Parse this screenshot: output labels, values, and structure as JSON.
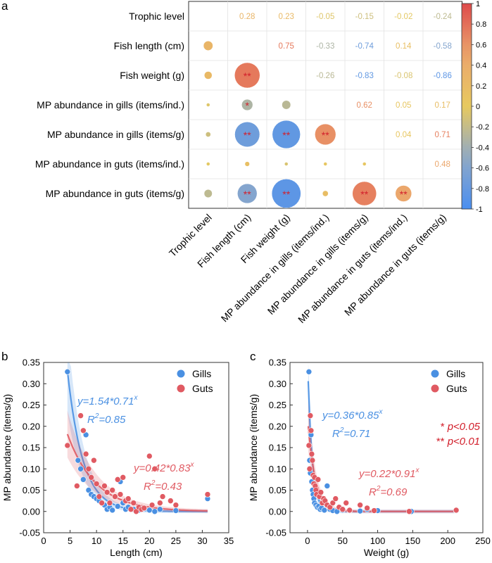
{
  "chart_data": [
    {
      "panel": "a",
      "type": "heatmap",
      "variables": [
        "Trophic level",
        "Fish length (cm)",
        "Fish weight (g)",
        "MP abundance in gills (items/ind.)",
        "MP abundance in gills (items/g)",
        "MP abundance in guts (items/ind.)",
        "MP abundance in guts (items/g)"
      ],
      "values": [
        [
          null,
          0.28,
          0.23,
          -0.05,
          -0.15,
          -0.02,
          -0.24
        ],
        [
          0.28,
          null,
          0.75,
          -0.33,
          -0.74,
          0.14,
          -0.58
        ],
        [
          0.23,
          0.75,
          null,
          -0.26,
          -0.83,
          -0.08,
          -0.86
        ],
        [
          -0.05,
          -0.33,
          -0.26,
          null,
          0.62,
          0.05,
          0.17
        ],
        [
          -0.15,
          -0.74,
          -0.83,
          0.62,
          null,
          0.04,
          0.71
        ],
        [
          -0.02,
          0.14,
          -0.08,
          0.05,
          0.04,
          null,
          0.48
        ],
        [
          -0.24,
          -0.58,
          -0.86,
          0.17,
          0.71,
          0.48,
          null
        ]
      ],
      "labels": [
        [
          "",
          "0.28",
          "0.23",
          "-0.05",
          "-0.15",
          "-0.02",
          "-0.24"
        ],
        [
          "",
          "",
          "0.75",
          "-0.33",
          "-0.74",
          "0.14",
          "-0.58"
        ],
        [
          "",
          "",
          "",
          "-0.26",
          "-0.83",
          "-0.08",
          "-0.86"
        ],
        [
          "",
          "",
          "",
          "",
          "0.62",
          "0.05",
          "0.17"
        ],
        [
          "",
          "",
          "",
          "",
          "",
          "0.04",
          "0.71"
        ],
        [
          "",
          "",
          "",
          "",
          "",
          "",
          "0.48"
        ],
        [
          "",
          "",
          "",
          "",
          "",
          "",
          ""
        ]
      ],
      "significance": [
        [
          "",
          "",
          "",
          "",
          "",
          "",
          ""
        ],
        [
          "",
          "",
          "",
          "",
          "",
          "",
          ""
        ],
        [
          "",
          "**",
          "",
          "",
          "",
          "",
          ""
        ],
        [
          "",
          "*",
          "",
          "",
          "",
          "",
          ""
        ],
        [
          "",
          "**",
          "**",
          "**",
          "",
          "",
          ""
        ],
        [
          "",
          "",
          "",
          "",
          "",
          "",
          ""
        ],
        [
          "",
          "**",
          "**",
          "",
          "**",
          "**",
          ""
        ]
      ],
      "colorbar": {
        "min": -1,
        "max": 1,
        "ticks": [
          "1",
          "0.8",
          "0.6",
          "0.4",
          "0.2",
          "0",
          "-0.2",
          "-0.4",
          "-0.6",
          "-0.8",
          "-1"
        ]
      },
      "significance_legend": [
        {
          "mark": "*",
          "text": "p<0.05"
        },
        {
          "mark": "**",
          "text": "p<0.01"
        }
      ]
    },
    {
      "panel": "b",
      "type": "scatter",
      "xlabel": "Length (cm)",
      "ylabel": "MP abundance (items/g)",
      "xlim": [
        0,
        35
      ],
      "ylim": [
        -0.05,
        0.35
      ],
      "xticks": [
        "0",
        "5",
        "10",
        "15",
        "20",
        "25",
        "30",
        "35"
      ],
      "yticks": [
        "-0.05",
        "0.00",
        "0.05",
        "0.10",
        "0.15",
        "0.20",
        "0.25",
        "0.30",
        "0.35"
      ],
      "legend_position": "top-right",
      "series": [
        {
          "name": "Gills",
          "color": "#4a90e2",
          "fit": {
            "a": 1.54,
            "b": 0.71,
            "x_range": [
              4.5,
              31
            ],
            "equation": "y=1.54*0.71",
            "exponent": "x",
            "r2_label": "R",
            "r2_sup": "2",
            "r2_value": "=0.85"
          },
          "points": [
            [
              4.5,
              0.328
            ],
            [
              6.5,
              0.12
            ],
            [
              7,
              0.1
            ],
            [
              7.5,
              0.075
            ],
            [
              8,
              0.18
            ],
            [
              8.5,
              0.05
            ],
            [
              9,
              0.04
            ],
            [
              9.5,
              0.035
            ],
            [
              10,
              0.03
            ],
            [
              10.5,
              0.025
            ],
            [
              11,
              0.02
            ],
            [
              11.5,
              0.015
            ],
            [
              12,
              0.005
            ],
            [
              12.5,
              0.01
            ],
            [
              13,
              0.003
            ],
            [
              14,
              0.012
            ],
            [
              14.5,
              0.07
            ],
            [
              15,
              0.02
            ],
            [
              15.5,
              0.005
            ],
            [
              16,
              0.01
            ],
            [
              17,
              0.005
            ],
            [
              18,
              0.003
            ],
            [
              19,
              0.008
            ],
            [
              20,
              0.003
            ],
            [
              21,
              0.0
            ],
            [
              22,
              0.005
            ],
            [
              25,
              0.002
            ],
            [
              31,
              0.03
            ]
          ]
        },
        {
          "name": "Guts",
          "color": "#e05a62",
          "fit": {
            "a": 0.42,
            "b": 0.83,
            "x_range": [
              4.5,
              31
            ],
            "equation": "y=0.42*0.83",
            "exponent": "x",
            "r2_label": "R",
            "r2_sup": "2",
            "r2_value": "=0.43"
          },
          "points": [
            [
              4.5,
              0.155
            ],
            [
              6.3,
              0.06
            ],
            [
              7,
              0.225
            ],
            [
              7.5,
              0.19
            ],
            [
              8,
              0.135
            ],
            [
              8.5,
              0.1
            ],
            [
              9,
              0.08
            ],
            [
              9.5,
              0.12
            ],
            [
              10,
              0.065
            ],
            [
              10.5,
              0.035
            ],
            [
              11,
              0.02
            ],
            [
              11.5,
              0.06
            ],
            [
              12,
              0.045
            ],
            [
              12.5,
              0.02
            ],
            [
              13,
              0.05
            ],
            [
              13.5,
              0.035
            ],
            [
              14,
              0.075
            ],
            [
              14.5,
              0.04
            ],
            [
              15,
              0.08
            ],
            [
              15.5,
              0.025
            ],
            [
              16,
              0.03
            ],
            [
              16.5,
              0.005
            ],
            [
              17,
              0.02
            ],
            [
              17.5,
              0.0
            ],
            [
              18,
              0.01
            ],
            [
              18.5,
              0.005
            ],
            [
              19,
              0.008
            ],
            [
              20,
              0.13
            ],
            [
              20.5,
              0.015
            ],
            [
              21,
              0.1
            ],
            [
              22,
              0.02
            ],
            [
              22.5,
              0.035
            ],
            [
              24,
              0.025
            ],
            [
              25,
              0.015
            ],
            [
              31,
              0.04
            ]
          ]
        }
      ]
    },
    {
      "panel": "c",
      "type": "scatter",
      "xlabel": "Weight (g)",
      "ylabel": "MP abundance (items/g)",
      "xlim": [
        -25,
        250
      ],
      "ylim": [
        -0.05,
        0.35
      ],
      "xticks": [
        "0",
        "50",
        "100",
        "150",
        "200",
        "250"
      ],
      "yticks": [
        "-0.05",
        "0.00",
        "0.05",
        "0.10",
        "0.15",
        "0.20",
        "0.25",
        "0.30",
        "0.35"
      ],
      "legend_position": "top-right",
      "series": [
        {
          "name": "Gills",
          "color": "#4a90e2",
          "fit": {
            "a": 0.36,
            "b": 0.85,
            "x_range": [
              1,
              212
            ],
            "equation": "y=0.36*0.85",
            "exponent": "x",
            "r2_label": "R",
            "r2_sup": "2",
            "r2_value": "=0.71"
          },
          "points": [
            [
              2,
              0.328
            ],
            [
              3,
              0.12
            ],
            [
              4,
              0.09
            ],
            [
              5,
              0.18
            ],
            [
              6,
              0.07
            ],
            [
              7,
              0.05
            ],
            [
              8,
              0.04
            ],
            [
              9,
              0.03
            ],
            [
              10,
              0.02
            ],
            [
              12,
              0.015
            ],
            [
              14,
              0.01
            ],
            [
              16,
              0.012
            ],
            [
              18,
              0.005
            ],
            [
              20,
              0.008
            ],
            [
              24,
              0.003
            ],
            [
              28,
              0.06
            ],
            [
              32,
              0.005
            ],
            [
              36,
              0.002
            ],
            [
              42,
              0.0
            ],
            [
              50,
              0.003
            ],
            [
              60,
              0.002
            ],
            [
              75,
              0.001
            ],
            [
              85,
              0.005
            ],
            [
              100,
              0.002
            ],
            [
              148,
              0.0
            ],
            [
              212,
              0.002
            ]
          ]
        },
        {
          "name": "Guts",
          "color": "#e05a62",
          "fit": {
            "a": 0.22,
            "b": 0.91,
            "x_range": [
              1,
              212
            ],
            "equation": "y=0.22*0.91",
            "exponent": "x",
            "r2_label": "R",
            "r2_sup": "2",
            "r2_value": "=0.69"
          },
          "points": [
            [
              2,
              0.155
            ],
            [
              3,
              0.1
            ],
            [
              4,
              0.225
            ],
            [
              5,
              0.19
            ],
            [
              6,
              0.135
            ],
            [
              7,
              0.12
            ],
            [
              8,
              0.085
            ],
            [
              9,
              0.065
            ],
            [
              10,
              0.08
            ],
            [
              11,
              0.06
            ],
            [
              12,
              0.05
            ],
            [
              13,
              0.04
            ],
            [
              15,
              0.075
            ],
            [
              17,
              0.035
            ],
            [
              19,
              0.045
            ],
            [
              21,
              0.02
            ],
            [
              23,
              0.03
            ],
            [
              25,
              0.025
            ],
            [
              28,
              0.015
            ],
            [
              32,
              0.01
            ],
            [
              36,
              0.02
            ],
            [
              40,
              0.03
            ],
            [
              45,
              0.01
            ],
            [
              50,
              0.005
            ],
            [
              55,
              0.02
            ],
            [
              60,
              0.003
            ],
            [
              75,
              0.015
            ],
            [
              85,
              0.008
            ],
            [
              95,
              0.002
            ],
            [
              145,
              0.0
            ],
            [
              212,
              0.003
            ]
          ]
        }
      ]
    }
  ]
}
